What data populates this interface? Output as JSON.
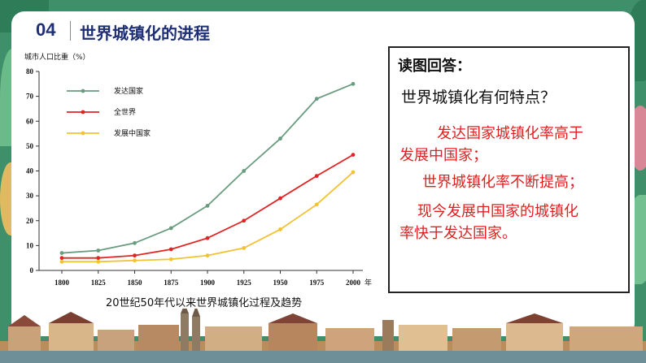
{
  "header": {
    "number": "04",
    "title": "世界城镇化的进程"
  },
  "colors": {
    "developed": "#6a9c80",
    "world": "#e02424",
    "developing": "#f2c232",
    "answer_text": "#e02020",
    "title": "#1f2f73"
  },
  "chart_data": {
    "type": "line",
    "title": "",
    "ylabel": "城市人口比重（%）",
    "x_unit": "年",
    "caption": "20世纪50年代以来世界城镇化过程及趋势",
    "x": [
      "1800",
      "1825",
      "1850",
      "1875",
      "1900",
      "1925",
      "1950",
      "1975",
      "2000"
    ],
    "ylim": [
      0,
      80
    ],
    "yticks": [
      "0",
      "10",
      "20",
      "30",
      "40",
      "50",
      "60",
      "70",
      "80"
    ],
    "legend_position": "top-left",
    "grid": false,
    "series": [
      {
        "name": "发达国家",
        "values": [
          7,
          8,
          11,
          17,
          26,
          40,
          53,
          69,
          75
        ]
      },
      {
        "name": "全世界",
        "values": [
          5,
          5,
          6,
          8.5,
          13,
          20,
          29,
          38,
          46.5
        ]
      },
      {
        "name": "发展中国家",
        "values": [
          3.5,
          3.5,
          4,
          4.5,
          6,
          9,
          16.5,
          26.5,
          39.5
        ]
      }
    ]
  },
  "qa": {
    "heading": "读图回答：",
    "question": "世界城镇化有何特点？",
    "answers": [
      [
        "发达国家城镇化率高于",
        "发展中国家；"
      ],
      [
        "世界城镇化率不断提高；"
      ],
      [
        "现今发展中国家的城镇化",
        "率快于发达国家。"
      ]
    ]
  }
}
